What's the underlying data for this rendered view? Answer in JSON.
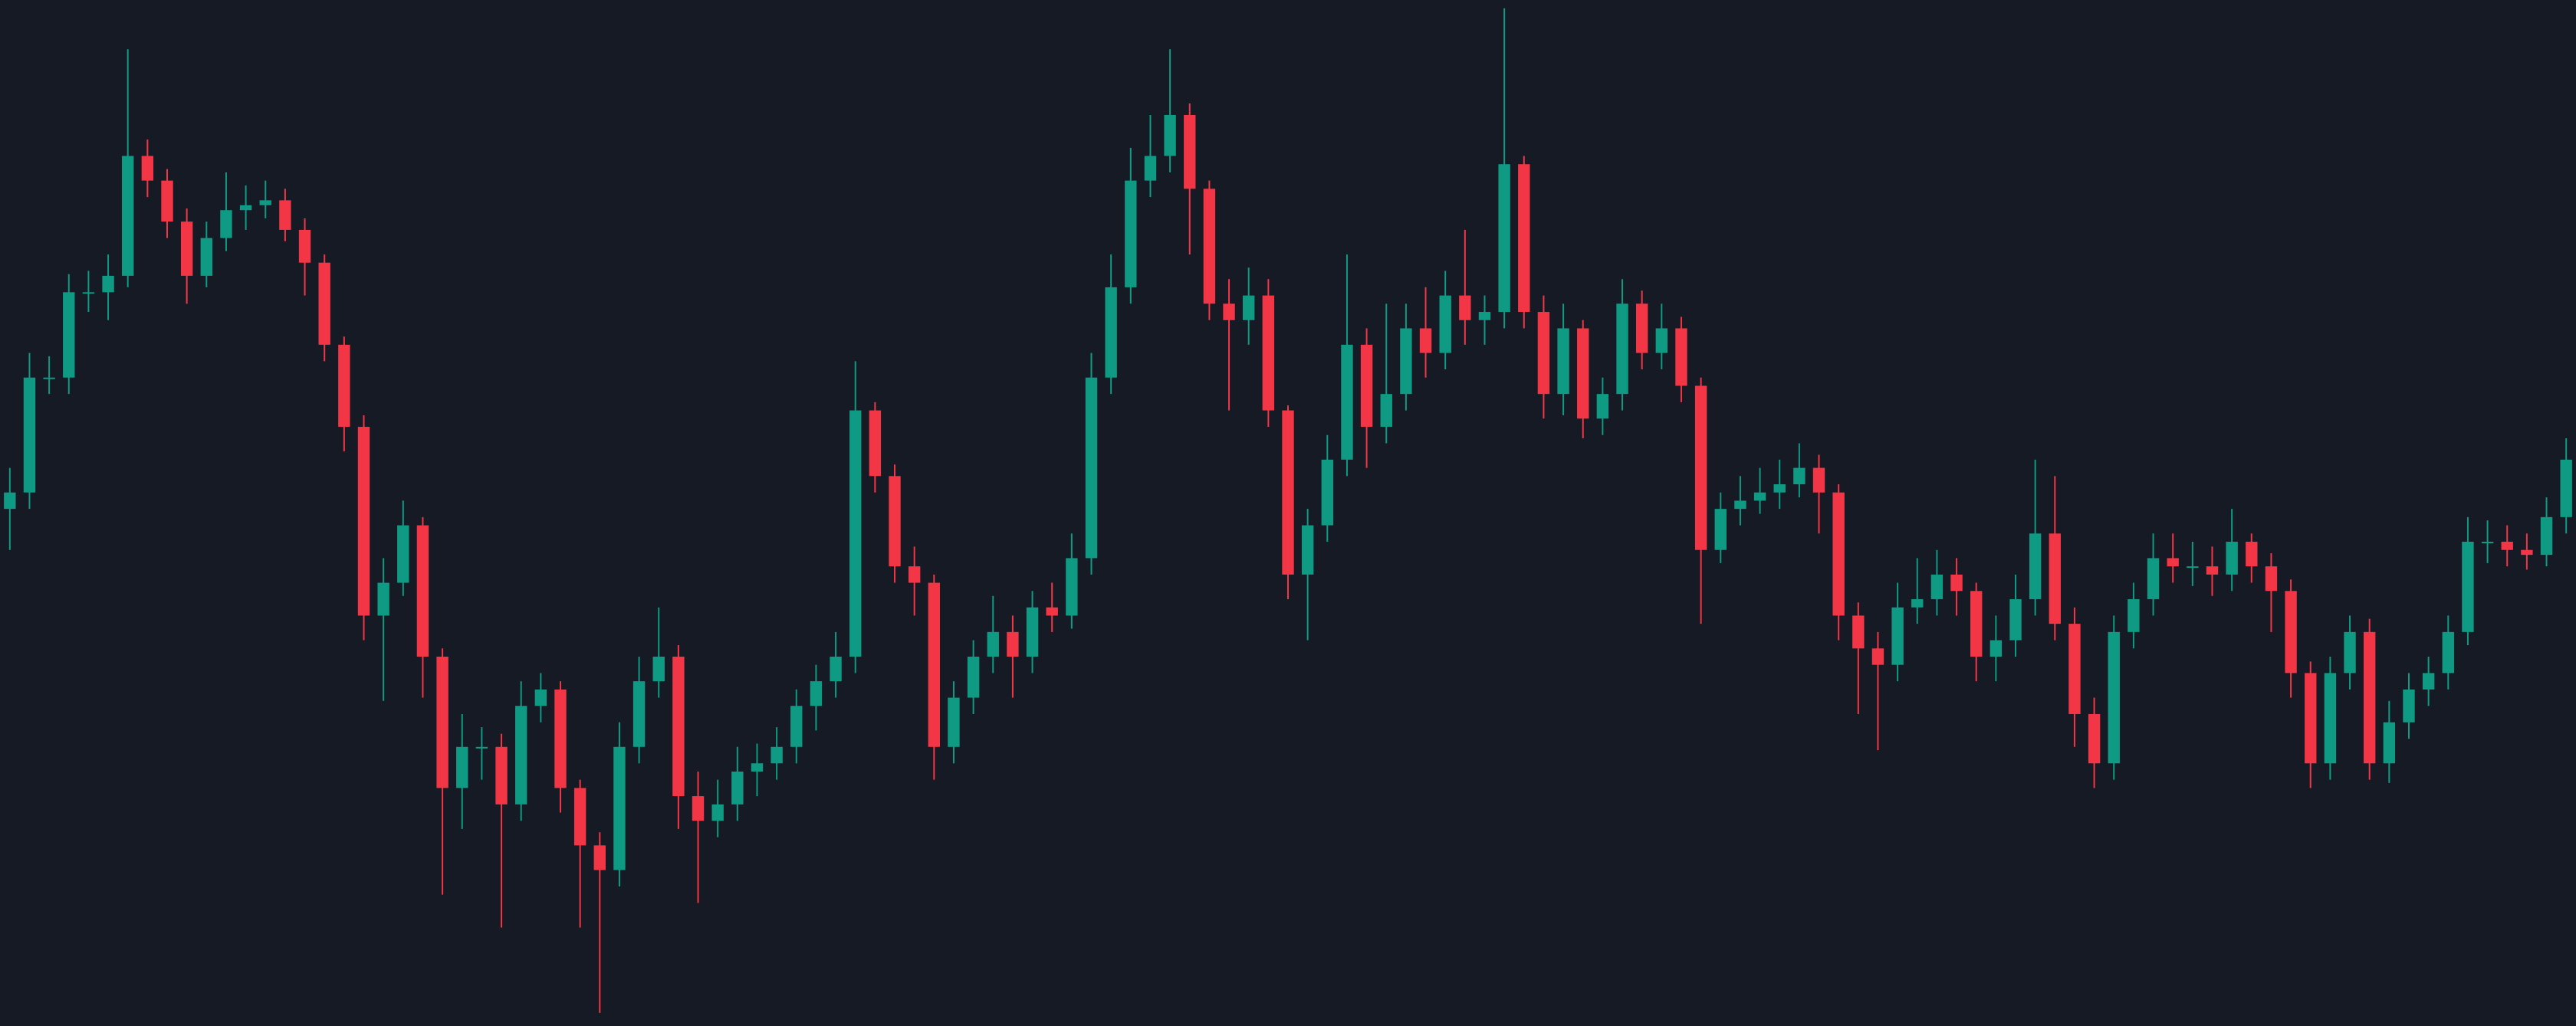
{
  "chart_data": {
    "type": "candlestick",
    "up_color": "#0f9a84",
    "down_color": "#f23645",
    "background": "#161a25",
    "ylim": [
      0,
      625
    ],
    "open": [
      315,
      325,
      395,
      395,
      447,
      447,
      457,
      530,
      515,
      490,
      457,
      480,
      497,
      500,
      503,
      485,
      465,
      415,
      365,
      250,
      270,
      305,
      225,
      145,
      170,
      170,
      135,
      195,
      205,
      145,
      110,
      95,
      170,
      210,
      225,
      140,
      125,
      135,
      155,
      160,
      170,
      195,
      210,
      225,
      375,
      335,
      280,
      270,
      170,
      200,
      225,
      240,
      225,
      255,
      250,
      285,
      395,
      450,
      515,
      530,
      555,
      510,
      440,
      430,
      445,
      375,
      275,
      305,
      345,
      415,
      365,
      385,
      425,
      410,
      445,
      430,
      435,
      525,
      435,
      385,
      425,
      370,
      385,
      440,
      410,
      425,
      390,
      290,
      315,
      320,
      325,
      330,
      340,
      325,
      250,
      230,
      220,
      255,
      260,
      275,
      265,
      225,
      235,
      260,
      300,
      245,
      190,
      160,
      240,
      260,
      285,
      280,
      280,
      275,
      295,
      280,
      265,
      215,
      160,
      215,
      240,
      160,
      185,
      205,
      215,
      240,
      295,
      295,
      290,
      287,
      310
    ],
    "high": [
      340,
      410,
      408,
      458,
      460,
      470,
      595,
      540,
      522,
      498,
      490,
      520,
      512,
      515,
      510,
      492,
      470,
      420,
      372,
      285,
      320,
      310,
      230,
      190,
      182,
      178,
      210,
      215,
      210,
      150,
      118,
      185,
      225,
      255,
      232,
      155,
      150,
      170,
      172,
      182,
      205,
      220,
      240,
      405,
      380,
      342,
      292,
      275,
      210,
      235,
      262,
      250,
      265,
      270,
      300,
      410,
      470,
      535,
      555,
      595,
      562,
      515,
      455,
      462,
      455,
      378,
      315,
      360,
      470,
      425,
      440,
      440,
      450,
      460,
      485,
      445,
      620,
      530,
      445,
      440,
      430,
      395,
      455,
      448,
      440,
      432,
      395,
      325,
      335,
      340,
      345,
      355,
      348,
      330,
      258,
      240,
      270,
      285,
      290,
      285,
      270,
      250,
      275,
      345,
      335,
      255,
      200,
      250,
      270,
      300,
      300,
      295,
      292,
      315,
      300,
      288,
      272,
      222,
      225,
      250,
      248,
      198,
      215,
      225,
      250,
      310,
      308,
      305,
      300,
      322,
      358
    ],
    "low": [
      290,
      315,
      385,
      385,
      435,
      430,
      450,
      505,
      480,
      440,
      450,
      472,
      485,
      492,
      478,
      445,
      405,
      350,
      235,
      198,
      262,
      200,
      80,
      120,
      150,
      60,
      125,
      185,
      130,
      60,
      8,
      85,
      160,
      200,
      120,
      75,
      115,
      125,
      140,
      150,
      160,
      180,
      200,
      215,
      325,
      270,
      250,
      150,
      160,
      190,
      215,
      200,
      215,
      240,
      242,
      275,
      385,
      440,
      505,
      520,
      470,
      430,
      375,
      415,
      365,
      260,
      235,
      295,
      335,
      340,
      355,
      375,
      395,
      400,
      415,
      415,
      425,
      425,
      370,
      372,
      358,
      360,
      375,
      400,
      400,
      380,
      245,
      282,
      305,
      312,
      315,
      322,
      300,
      235,
      190,
      168,
      210,
      245,
      250,
      250,
      210,
      210,
      225,
      250,
      235,
      170,
      145,
      150,
      230,
      250,
      270,
      268,
      262,
      265,
      270,
      240,
      200,
      145,
      150,
      205,
      150,
      148,
      175,
      195,
      205,
      232,
      282,
      280,
      278,
      280,
      300
    ],
    "close": [
      325,
      395,
      395,
      447,
      447,
      457,
      530,
      515,
      490,
      457,
      480,
      497,
      500,
      503,
      485,
      465,
      415,
      365,
      250,
      270,
      305,
      225,
      145,
      170,
      170,
      135,
      195,
      205,
      145,
      110,
      95,
      170,
      210,
      225,
      140,
      125,
      135,
      155,
      160,
      170,
      195,
      210,
      225,
      375,
      335,
      280,
      270,
      170,
      200,
      225,
      240,
      225,
      255,
      250,
      285,
      395,
      450,
      515,
      530,
      555,
      510,
      440,
      430,
      445,
      375,
      275,
      305,
      345,
      415,
      365,
      385,
      425,
      410,
      445,
      430,
      435,
      525,
      435,
      385,
      425,
      370,
      385,
      440,
      410,
      425,
      390,
      290,
      315,
      320,
      325,
      330,
      340,
      325,
      250,
      230,
      220,
      255,
      260,
      275,
      265,
      225,
      235,
      260,
      300,
      245,
      190,
      160,
      240,
      260,
      285,
      280,
      280,
      275,
      295,
      280,
      265,
      215,
      160,
      215,
      240,
      160,
      185,
      205,
      215,
      240,
      295,
      295,
      290,
      287,
      310,
      345
    ]
  }
}
